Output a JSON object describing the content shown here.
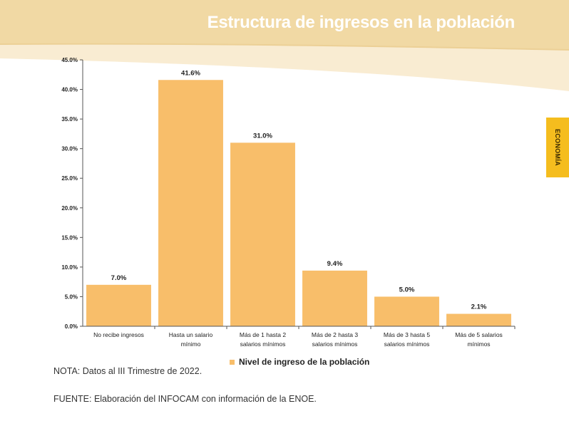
{
  "header": {
    "title": "Estructura de ingresos en la población",
    "bg_color": "#f1d9a4",
    "accent_color": "#e8c787"
  },
  "side_tab": {
    "label": "ECONOMÍA",
    "color": "#f5bd1e"
  },
  "chart_data": {
    "type": "bar",
    "categories": [
      [
        "No recibe ingresos"
      ],
      [
        "Hasta un salario",
        "mínimo"
      ],
      [
        "Más de 1 hasta 2",
        "salarios mínimos"
      ],
      [
        "Más de 2 hasta 3",
        "salarios mínimos"
      ],
      [
        "Más de 3 hasta 5",
        "salarios mínimos"
      ],
      [
        "Más de 5 salarios",
        "mínimos"
      ]
    ],
    "series": [
      {
        "name": "Nivel de ingreso de la población",
        "values": [
          7.0,
          41.6,
          31.0,
          9.4,
          5.0,
          2.1
        ],
        "data_labels": [
          "7.0%",
          "41.6%",
          "31.0%",
          "9.4%",
          "5.0%",
          "2.1%"
        ],
        "color": "#f8be6a"
      }
    ],
    "ylim": [
      0,
      45
    ],
    "yticks": [
      0,
      5,
      10,
      15,
      20,
      25,
      30,
      35,
      40,
      45
    ],
    "ytick_labels": [
      "0.0%",
      "5.0%",
      "10.0%",
      "15.0%",
      "20.0%",
      "25.0%",
      "30.0%",
      "35.0%",
      "40.0%",
      "45.0%"
    ],
    "grid": false,
    "legend_position": "bottom-center"
  },
  "notes": {
    "nota": "NOTA: Datos al III Trimestre de 2022.",
    "fuente": "FUENTE: Elaboración del INFOCAM con información de la ENOE."
  }
}
